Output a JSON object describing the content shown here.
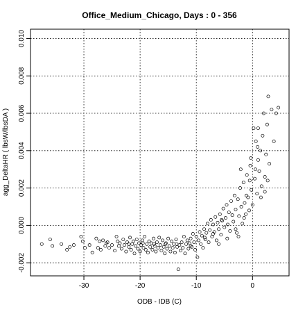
{
  "chart_data": {
    "type": "scatter",
    "title": "Office_Medium_Chicago,  Days : 0 - 356",
    "xlabel": "ODB - IDB (C)",
    "ylabel": "agg_DeltaHR  ( lbsW/lbsDA )",
    "xlim": [
      -39.5,
      6.5
    ],
    "ylim": [
      -0.0027,
      0.0105
    ],
    "xticks": [
      -30,
      -20,
      -10,
      0
    ],
    "xtick_labels": [
      "-30",
      "-20",
      "-10",
      "0"
    ],
    "yticks": [
      -0.002,
      0.0,
      0.002,
      0.004,
      0.006,
      0.008,
      0.01
    ],
    "ytick_labels": [
      "-0.002",
      "0.000",
      "0.002",
      "0.004",
      "0.006",
      "0.008",
      "0.010"
    ],
    "grid": true,
    "legend": "none",
    "marker": "open-circle",
    "points": [
      [
        -37.5,
        -0.001
      ],
      [
        -36.0,
        -0.00075
      ],
      [
        -35.6,
        -0.0011
      ],
      [
        -34.0,
        -0.001
      ],
      [
        -33.0,
        -0.0013
      ],
      [
        -32.5,
        -0.00115
      ],
      [
        -31.8,
        -0.00105
      ],
      [
        -30.5,
        -0.0006
      ],
      [
        -30.2,
        -0.00085
      ],
      [
        -29.8,
        -0.0012
      ],
      [
        -29.0,
        -0.00105
      ],
      [
        -28.5,
        -0.00145
      ],
      [
        -27.8,
        -0.0007
      ],
      [
        -27.5,
        -0.0012
      ],
      [
        -27.2,
        -0.00085
      ],
      [
        -27.0,
        -0.0013
      ],
      [
        -26.6,
        -0.0008
      ],
      [
        -26.2,
        -0.0011
      ],
      [
        -26.0,
        -0.00095
      ],
      [
        -25.5,
        -0.0012
      ],
      [
        -25.0,
        -0.00105
      ],
      [
        -24.5,
        -0.00135
      ],
      [
        -24.2,
        -0.0006
      ],
      [
        -24.0,
        -0.00085
      ],
      [
        -23.8,
        -0.0011
      ],
      [
        -23.6,
        -0.00095
      ],
      [
        -23.3,
        -0.00125
      ],
      [
        -23.0,
        -0.00075
      ],
      [
        -22.8,
        -0.00105
      ],
      [
        -22.5,
        -0.0014
      ],
      [
        -22.3,
        -0.0009
      ],
      [
        -22.0,
        -0.00115
      ],
      [
        -21.8,
        -0.00065
      ],
      [
        -21.6,
        -0.0013
      ],
      [
        -21.4,
        -0.001
      ],
      [
        -21.2,
        -0.00085
      ],
      [
        -21.0,
        -0.0015
      ],
      [
        -20.8,
        -0.0011
      ],
      [
        -20.6,
        -0.00075
      ],
      [
        -20.4,
        -0.00125
      ],
      [
        -20.2,
        -0.00095
      ],
      [
        -20.0,
        -0.0014
      ],
      [
        -19.8,
        -0.00105
      ],
      [
        -19.6,
        -0.0008
      ],
      [
        -19.4,
        -0.0012
      ],
      [
        -19.2,
        -0.0006
      ],
      [
        -19.0,
        -0.0013
      ],
      [
        -18.8,
        -0.001
      ],
      [
        -18.6,
        -0.00145
      ],
      [
        -18.4,
        -0.00085
      ],
      [
        -18.2,
        -0.00115
      ],
      [
        -18.0,
        -0.00095
      ],
      [
        -17.8,
        -0.0013
      ],
      [
        -17.6,
        -0.0007
      ],
      [
        -17.4,
        -0.0011
      ],
      [
        -17.2,
        -0.0014
      ],
      [
        -17.0,
        -0.0009
      ],
      [
        -16.8,
        -0.0012
      ],
      [
        -16.6,
        -0.00065
      ],
      [
        -16.4,
        -0.00105
      ],
      [
        -16.2,
        -0.00135
      ],
      [
        -16.0,
        -0.0008
      ],
      [
        -15.8,
        -0.00115
      ],
      [
        -15.6,
        -0.0015
      ],
      [
        -15.4,
        -0.00095
      ],
      [
        -15.2,
        -0.00125
      ],
      [
        -15.0,
        -0.0007
      ],
      [
        -14.8,
        -0.0011
      ],
      [
        -14.6,
        -0.0014
      ],
      [
        -14.4,
        -0.00085
      ],
      [
        -14.2,
        -0.0012
      ],
      [
        -14.0,
        -0.001
      ],
      [
        -13.8,
        -0.00145
      ],
      [
        -13.6,
        -0.00075
      ],
      [
        -13.4,
        -0.00115
      ],
      [
        -13.2,
        -0.00235
      ],
      [
        -13.0,
        -0.00105
      ],
      [
        -12.8,
        -0.00135
      ],
      [
        -12.6,
        -0.0009
      ],
      [
        -12.4,
        -0.0012
      ],
      [
        -12.2,
        -0.0006
      ],
      [
        -12.0,
        -0.0015
      ],
      [
        -11.8,
        -0.001
      ],
      [
        -11.6,
        -0.0008
      ],
      [
        -11.4,
        -0.00125
      ],
      [
        -11.2,
        -0.00095
      ],
      [
        -11.0,
        -0.0007
      ],
      [
        -10.8,
        -0.00115
      ],
      [
        -10.6,
        -0.00045
      ],
      [
        -10.4,
        -0.0009
      ],
      [
        -10.2,
        -0.0013
      ],
      [
        -10.0,
        -0.0006
      ],
      [
        -9.8,
        -0.0017
      ],
      [
        -9.6,
        -0.0008
      ],
      [
        -9.4,
        -0.00035
      ],
      [
        -9.2,
        -0.001
      ],
      [
        -9.0,
        -0.00055
      ],
      [
        -8.8,
        -0.0012
      ],
      [
        -8.6,
        -0.0002
      ],
      [
        -8.4,
        -0.00075
      ],
      [
        -8.2,
        -0.0004
      ],
      [
        -8.0,
        0.0001
      ],
      [
        -7.8,
        -0.0009
      ],
      [
        -7.6,
        -0.00025
      ],
      [
        -7.4,
        0.0003
      ],
      [
        -7.2,
        -0.0006
      ],
      [
        -7.0,
        5e-05
      ],
      [
        -6.8,
        -0.00035
      ],
      [
        -6.6,
        0.00045
      ],
      [
        -6.4,
        -0.0008
      ],
      [
        -6.2,
        0.00015
      ],
      [
        -6.0,
        -0.0002
      ],
      [
        -5.8,
        0.0006
      ],
      [
        -5.6,
        -0.0005
      ],
      [
        -5.4,
        0.00025
      ],
      [
        -5.2,
        0.0009
      ],
      [
        -5.0,
        -0.0001
      ],
      [
        -4.8,
        0.0004
      ],
      [
        -4.6,
        0.0011
      ],
      [
        -4.4,
        5e-05
      ],
      [
        -4.2,
        0.0007
      ],
      [
        -4.0,
        -0.0003
      ],
      [
        -3.8,
        0.0013
      ],
      [
        -3.6,
        0.00055
      ],
      [
        -3.4,
        0.0002
      ],
      [
        -3.2,
        0.0016
      ],
      [
        -3.0,
        0.00085
      ],
      [
        -2.8,
        -0.0004
      ],
      [
        -2.6,
        0.0014
      ],
      [
        -2.4,
        0.0005
      ],
      [
        -2.2,
        0.002
      ],
      [
        -2.0,
        0.001
      ],
      [
        -1.8,
        0.0001
      ],
      [
        -1.6,
        0.0023
      ],
      [
        -1.4,
        0.0012
      ],
      [
        -1.2,
        0.0006
      ],
      [
        -1.0,
        0.0027
      ],
      [
        -0.8,
        0.0015
      ],
      [
        -0.6,
        0.0008
      ],
      [
        -0.4,
        0.0032
      ],
      [
        -0.2,
        0.0019
      ],
      [
        0.0,
        0.0011
      ],
      [
        0.2,
        0.0052
      ],
      [
        0.4,
        0.0025
      ],
      [
        0.6,
        0.0045
      ],
      [
        0.8,
        0.0017
      ],
      [
        1.0,
        0.0035
      ],
      [
        1.2,
        0.0029
      ],
      [
        1.4,
        0.004
      ],
      [
        1.6,
        0.0021
      ],
      [
        1.8,
        0.0048
      ],
      [
        2.0,
        0.006
      ],
      [
        2.2,
        0.0026
      ],
      [
        2.4,
        0.0038
      ],
      [
        2.6,
        0.0054
      ],
      [
        2.8,
        0.0069
      ],
      [
        3.0,
        0.0033
      ],
      [
        3.4,
        0.0062
      ],
      [
        3.8,
        0.0045
      ],
      [
        4.2,
        0.006
      ],
      [
        4.6,
        0.0063
      ],
      [
        1.0,
        0.0052
      ],
      [
        -1.5,
        0.0004
      ],
      [
        -3.0,
        -0.0002
      ],
      [
        -6.0,
        -0.001
      ],
      [
        -4.5,
        -0.0007
      ],
      [
        -2.5,
        -0.0006
      ],
      [
        -0.5,
        0.0024
      ],
      [
        0.5,
        0.003
      ],
      [
        1.5,
        0.0015
      ],
      [
        2.2,
        0.0018
      ],
      [
        -11.0,
        -0.0011
      ],
      [
        -15.5,
        -0.001
      ],
      [
        -19.5,
        -0.00095
      ],
      [
        -22.0,
        -0.001
      ],
      [
        -25.8,
        -0.0009
      ],
      [
        -17.5,
        -0.001
      ],
      [
        -13.5,
        -0.001
      ],
      [
        -8.5,
        -0.00065
      ],
      [
        -7.0,
        -0.00045
      ],
      [
        -0.3,
        0.0036
      ],
      [
        0.9,
        0.0042
      ],
      [
        -1.1,
        0.0016
      ],
      [
        2.7,
        0.0024
      ],
      [
        -2.1,
        0.003
      ],
      [
        -5.5,
        0.0003
      ]
    ]
  }
}
